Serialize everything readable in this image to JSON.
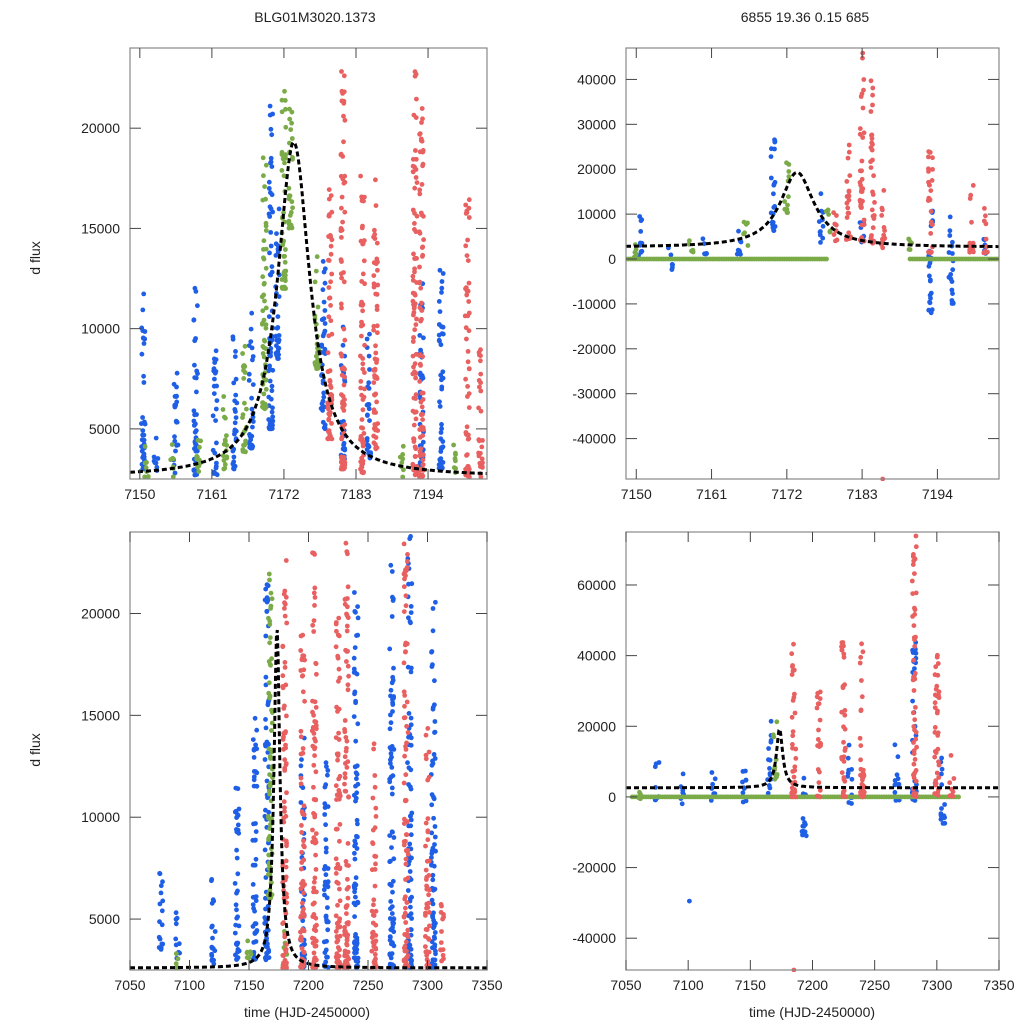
{
  "figure": {
    "title_left": "BLG01M3020.1373",
    "title_right": "6855  19.36  0.15  685",
    "colors": {
      "series_a": "#1f5fe6",
      "series_b": "#7aab48",
      "series_c": "#e86060",
      "model": "#000000",
      "frame": "#888888"
    }
  },
  "chart_data": [
    {
      "id": "top-left",
      "type": "scatter",
      "title": "BLG01M3020.1373",
      "xlabel": "",
      "ylabel": "d flux",
      "xlim": [
        7148.5,
        7203
      ],
      "ylim": [
        2500,
        24000
      ],
      "xticks": [
        7150,
        7161,
        7172,
        7183,
        7194
      ],
      "yticks": [
        5000,
        10000,
        15000,
        20000
      ],
      "model": {
        "type": "lorentzian",
        "t0": 7173.5,
        "peak": 19300,
        "base": 2600,
        "width": 3.0,
        "style": "dashed"
      },
      "series": [
        {
          "name": "blue",
          "color": "#1f5fe6",
          "clusters": [
            [
              7150.5,
              3000,
              11800
            ],
            [
              7152.5,
              2700,
              4700
            ],
            [
              7155.5,
              2800,
              7800
            ],
            [
              7158.5,
              2700,
              12300
            ],
            [
              7161.5,
              2700,
              9000
            ],
            [
              7164.5,
              3000,
              9700
            ],
            [
              7167,
              4000,
              11000
            ],
            [
              7170,
              5000,
              21800
            ],
            [
              7171,
              8500,
              16000
            ],
            [
              7178,
              5000,
              13500
            ],
            [
              7181,
              3500,
              10500
            ],
            [
              7185,
              3500,
              10500
            ],
            [
              7193,
              3000,
              13000
            ],
            [
              7196,
              3000,
              13500
            ]
          ]
        },
        {
          "name": "green",
          "color": "#7aab48",
          "clusters": [
            [
              7151,
              2600,
              4200
            ],
            [
              7155,
              2600,
              4500
            ],
            [
              7159,
              2700,
              5000
            ],
            [
              7163,
              3000,
              7000
            ],
            [
              7166,
              3800,
              9500
            ],
            [
              7169,
              6000,
              19500
            ],
            [
              7172,
              12000,
              22400
            ],
            [
              7173,
              15000,
              21000
            ],
            [
              7177,
              8000,
              14000
            ],
            [
              7190,
              2600,
              4500
            ],
            [
              7198,
              2600,
              4500
            ]
          ]
        },
        {
          "name": "red",
          "color": "#e86060",
          "clusters": [
            [
              7179,
              4500,
              19000
            ],
            [
              7181,
              3000,
              23000
            ],
            [
              7184,
              2800,
              18000
            ],
            [
              7186,
              4000,
              17500
            ],
            [
              7192,
              2700,
              22900
            ],
            [
              7193,
              2600,
              21000
            ],
            [
              7200,
              2600,
              16700
            ],
            [
              7202,
              2600,
              9000
            ]
          ]
        }
      ]
    },
    {
      "id": "top-right",
      "type": "scatter",
      "title": "6855  19.36  0.15  685",
      "xlabel": "",
      "ylabel": "",
      "xlim": [
        7148.5,
        7203
      ],
      "ylim": [
        -49000,
        47000
      ],
      "xticks": [
        7150,
        7161,
        7172,
        7183,
        7194
      ],
      "yticks": [
        -40000,
        -30000,
        -20000,
        -10000,
        0,
        10000,
        20000,
        30000,
        40000
      ],
      "model": {
        "type": "lorentzian",
        "t0": 7173.5,
        "peak": 19300,
        "base": 2600,
        "width": 3.0,
        "style": "dashed"
      },
      "series": [
        {
          "name": "blue",
          "color": "#1f5fe6",
          "clusters": [
            [
              7150.5,
              0,
              11800
            ],
            [
              7155,
              -2500,
              4000
            ],
            [
              7160,
              1000,
              7000
            ],
            [
              7165,
              1000,
              9000
            ],
            [
              7170,
              6000,
              30500
            ],
            [
              7177,
              3500,
              15000
            ],
            [
              7183,
              3500,
              9000
            ],
            [
              7193,
              -12000,
              12000
            ],
            [
              7196,
              -10000,
              11000
            ],
            [
              7201,
              1000,
              6500
            ]
          ]
        },
        {
          "name": "green",
          "color": "#7aab48",
          "clusters": [
            [
              7150,
              0,
              4000
            ],
            [
              7158,
              1500,
              4500
            ],
            [
              7166,
              3000,
              9000
            ],
            [
              7172,
              10000,
              22400
            ],
            [
              7178,
              6000,
              12000
            ],
            [
              7190,
              2000,
              4500
            ],
            [
              7199,
              1500,
              3500
            ]
          ]
        },
        {
          "name": "green-zero",
          "color": "#7aab48",
          "baseline": 0,
          "ranges": [
            [
              7148.5,
              7178
            ],
            [
              7190,
              7203
            ]
          ]
        },
        {
          "name": "red",
          "color": "#e86060",
          "clusters": [
            [
              7179,
              4000,
              12000
            ],
            [
              7181,
              4000,
              26500
            ],
            [
              7183,
              4000,
              46500
            ],
            [
              7184.5,
              3500,
              40000
            ],
            [
              7186,
              2500,
              17000
            ],
            [
              7193,
              1000,
              26500
            ],
            [
              7199,
              1500,
              16500
            ],
            [
              7201,
              1000,
              11500
            ]
          ]
        },
        {
          "name": "red-outlier",
          "color": "#e86060",
          "points": [
            [
              7186,
              -49000
            ]
          ]
        }
      ]
    },
    {
      "id": "bottom-left",
      "type": "scatter",
      "xlabel": "time (HJD-2450000)",
      "ylabel": "d flux",
      "xlim": [
        7050,
        7350
      ],
      "ylim": [
        2500,
        24000
      ],
      "xticks": [
        7050,
        7100,
        7150,
        7200,
        7250,
        7300,
        7350
      ],
      "yticks": [
        5000,
        10000,
        15000,
        20000
      ],
      "model": {
        "type": "lorentzian",
        "t0": 7173.5,
        "peak": 19300,
        "base": 2600,
        "width": 3.0,
        "style": "dashed"
      },
      "series": [
        {
          "name": "blue",
          "color": "#1f5fe6",
          "clusters": [
            [
              7076,
              3500,
              7600
            ],
            [
              7090,
              3000,
              5500
            ],
            [
              7120,
              2800,
              7400
            ],
            [
              7140,
              3000,
              12000
            ],
            [
              7155,
              3000,
              15000
            ],
            [
              7165,
              3000,
              21500
            ],
            [
              7195,
              2600,
              14000
            ],
            [
              7215,
              2600,
              13000
            ],
            [
              7240,
              2600,
              22000
            ],
            [
              7270,
              2600,
              22500
            ],
            [
              7285,
              2600,
              23800
            ],
            [
              7305,
              2600,
              21000
            ]
          ]
        },
        {
          "name": "green",
          "color": "#7aab48",
          "clusters": [
            [
              7090,
              2600,
              3500
            ],
            [
              7150,
              2600,
              4500
            ],
            [
              7168,
              6000,
              22400
            ],
            [
              7180,
              2600,
              5000
            ]
          ]
        },
        {
          "name": "red",
          "color": "#e86060",
          "clusters": [
            [
              7180,
              2600,
              23000
            ],
            [
              7195,
              2600,
              19000
            ],
            [
              7205,
              2600,
              23000
            ],
            [
              7225,
              2600,
              20000
            ],
            [
              7232,
              2600,
              23500
            ],
            [
              7255,
              2600,
              14000
            ],
            [
              7282,
              2600,
              23500
            ],
            [
              7300,
              2600,
              14500
            ],
            [
              7312,
              2600,
              6000
            ]
          ]
        }
      ]
    },
    {
      "id": "bottom-right",
      "type": "scatter",
      "xlabel": "time (HJD-2450000)",
      "ylabel": "",
      "xlim": [
        7050,
        7350
      ],
      "ylim": [
        -49000,
        75000
      ],
      "xticks": [
        7050,
        7100,
        7150,
        7200,
        7250,
        7300,
        7350
      ],
      "yticks": [
        -40000,
        -20000,
        0,
        20000,
        40000,
        60000
      ],
      "model": {
        "type": "lorentzian",
        "t0": 7173.5,
        "peak": 19300,
        "base": 2600,
        "width": 3.0,
        "style": "dashed"
      },
      "series": [
        {
          "name": "blue",
          "color": "#1f5fe6",
          "clusters": [
            [
              7075,
              -1000,
              10000
            ],
            [
              7095,
              -2000,
              7000
            ],
            [
              7120,
              -1000,
              9000
            ],
            [
              7145,
              -2000,
              12000
            ],
            [
              7165,
              1000,
              22000
            ],
            [
              7193,
              -11000,
              8000
            ],
            [
              7230,
              -2000,
              15000
            ],
            [
              7268,
              -1000,
              18000
            ],
            [
              7282,
              -1000,
              46000
            ],
            [
              7305,
              -7500,
              12000
            ]
          ]
        },
        {
          "name": "green",
          "color": "#7aab48",
          "clusters": [
            [
              7060,
              -500,
              1500
            ],
            [
              7170,
              5000,
              22500
            ]
          ]
        },
        {
          "name": "green-zero",
          "color": "#7aab48",
          "baseline": 0,
          "ranges": [
            [
              7055,
              7318
            ]
          ]
        },
        {
          "name": "red",
          "color": "#e86060",
          "clusters": [
            [
              7185,
              0,
              46000
            ],
            [
              7205,
              0,
              30000
            ],
            [
              7225,
              0,
              45000
            ],
            [
              7240,
              0,
              45000
            ],
            [
              7282,
              0,
              75000
            ],
            [
              7300,
              0,
              51000
            ],
            [
              7312,
              0,
              12000
            ]
          ]
        },
        {
          "name": "outliers",
          "color": "#1f5fe6",
          "points": [
            [
              7101,
              -29500
            ],
            [
              7195,
              -11000
            ],
            [
              7305,
              -7500
            ]
          ]
        },
        {
          "name": "red-outlier",
          "color": "#e86060",
          "points": [
            [
              7185,
              -49000
            ]
          ]
        }
      ]
    }
  ]
}
